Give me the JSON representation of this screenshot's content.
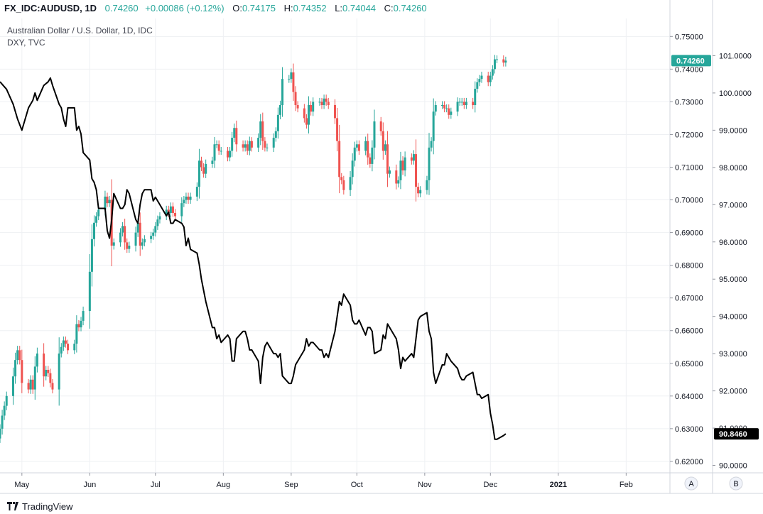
{
  "legend": {
    "symbol": "FX_IDC:AUDUSD, 1D",
    "last": "0.74260",
    "change": "+0.00086 (+0.12%)",
    "o_label": "O:",
    "o": "0.74175",
    "h_label": "H:",
    "h": "0.74352",
    "l_label": "L:",
    "l": "0.74044",
    "c_label": "C:",
    "c": "0.74260"
  },
  "chart_data": {
    "type": "candlestick+line",
    "title": "Australian Dollar / U.S. Dollar, 1D, IDC",
    "subtitle": "DXY, TVC",
    "xlabel": "",
    "x_tick_labels": [
      "May",
      "Jun",
      "Jul",
      "Aug",
      "Sep",
      "Oct",
      "Nov",
      "Dec",
      "2021",
      "Feb"
    ],
    "x_tick_dates": [
      "2020-05-01",
      "2020-06-01",
      "2020-07-01",
      "2020-08-01",
      "2020-09-01",
      "2020-10-01",
      "2020-11-01",
      "2020-12-01",
      "2021-01-01",
      "2021-02-01"
    ],
    "x_range": [
      "2020-04-21",
      "2021-02-21"
    ],
    "left_axis": {
      "label": "",
      "series": "FX_IDC:AUDUSD",
      "ylim": [
        0.6165,
        0.7555
      ],
      "ticks": [
        "0.62000",
        "0.63000",
        "0.64000",
        "0.65000",
        "0.66000",
        "0.67000",
        "0.68000",
        "0.69000",
        "0.70000",
        "0.71000",
        "0.72000",
        "0.73000",
        "0.74000",
        "0.75000"
      ],
      "last_value_label": "0.74260",
      "last_value": 0.7426
    },
    "right_axis": {
      "label": "",
      "series": "DXY, TVC",
      "ylim": [
        89.8,
        102.0
      ],
      "ticks": [
        "90.0000",
        "91.0000",
        "92.0000",
        "93.0000",
        "94.0000",
        "95.0000",
        "96.0000",
        "97.0000",
        "98.0000",
        "99.0000",
        "100.0000",
        "101.0000"
      ],
      "last_value_label": "90.8460",
      "last_value": 90.846
    },
    "axis_buttons": [
      "A",
      "B"
    ],
    "audusd_daily_close": [
      [
        "2020-04-21",
        0.63
      ],
      [
        "2020-04-22",
        0.634
      ],
      [
        "2020-04-23",
        0.637
      ],
      [
        "2020-04-24",
        0.64
      ],
      [
        "2020-04-27",
        0.646
      ],
      [
        "2020-04-28",
        0.651
      ],
      [
        "2020-04-29",
        0.654
      ],
      [
        "2020-04-30",
        0.651
      ],
      [
        "2020-05-01",
        0.644
      ],
      [
        "2020-05-04",
        0.642
      ],
      [
        "2020-05-05",
        0.645
      ],
      [
        "2020-05-06",
        0.642
      ],
      [
        "2020-05-07",
        0.649
      ],
      [
        "2020-05-08",
        0.653
      ],
      [
        "2020-05-11",
        0.646
      ],
      [
        "2020-05-12",
        0.648
      ],
      [
        "2020-05-13",
        0.647
      ],
      [
        "2020-05-14",
        0.644
      ],
      [
        "2020-05-15",
        0.642
      ],
      [
        "2020-05-18",
        0.653
      ],
      [
        "2020-05-19",
        0.655
      ],
      [
        "2020-05-20",
        0.657
      ],
      [
        "2020-05-21",
        0.656
      ],
      [
        "2020-05-22",
        0.654
      ],
      [
        "2020-05-25",
        0.656
      ],
      [
        "2020-05-26",
        0.662
      ],
      [
        "2020-05-27",
        0.661
      ],
      [
        "2020-05-28",
        0.663
      ],
      [
        "2020-05-29",
        0.666
      ],
      [
        "2020-06-01",
        0.678
      ],
      [
        "2020-06-02",
        0.688
      ],
      [
        "2020-06-03",
        0.693
      ],
      [
        "2020-06-04",
        0.695
      ],
      [
        "2020-06-05",
        0.697
      ],
      [
        "2020-06-08",
        0.701
      ],
      [
        "2020-06-09",
        0.699
      ],
      [
        "2020-06-10",
        0.7
      ],
      [
        "2020-06-11",
        0.686
      ],
      [
        "2020-06-12",
        0.687
      ],
      [
        "2020-06-15",
        0.69
      ],
      [
        "2020-06-16",
        0.692
      ],
      [
        "2020-06-17",
        0.687
      ],
      [
        "2020-06-18",
        0.685
      ],
      [
        "2020-06-19",
        0.686
      ],
      [
        "2020-06-22",
        0.69
      ],
      [
        "2020-06-23",
        0.693
      ],
      [
        "2020-06-24",
        0.686
      ],
      [
        "2020-06-25",
        0.687
      ],
      [
        "2020-06-26",
        0.688
      ],
      [
        "2020-06-29",
        0.689
      ],
      [
        "2020-06-30",
        0.69
      ],
      [
        "2020-07-01",
        0.692
      ],
      [
        "2020-07-02",
        0.694
      ],
      [
        "2020-07-03",
        0.695
      ],
      [
        "2020-07-06",
        0.697
      ],
      [
        "2020-07-07",
        0.696
      ],
      [
        "2020-07-08",
        0.698
      ],
      [
        "2020-07-09",
        0.696
      ],
      [
        "2020-07-10",
        0.695
      ],
      [
        "2020-07-13",
        0.699
      ],
      [
        "2020-07-14",
        0.7
      ],
      [
        "2020-07-15",
        0.701
      ],
      [
        "2020-07-16",
        0.7
      ],
      [
        "2020-07-17",
        0.701
      ],
      [
        "2020-07-20",
        0.704
      ],
      [
        "2020-07-21",
        0.712
      ],
      [
        "2020-07-22",
        0.71
      ],
      [
        "2020-07-23",
        0.708
      ],
      [
        "2020-07-24",
        0.711
      ],
      [
        "2020-07-27",
        0.712
      ],
      [
        "2020-07-28",
        0.717
      ],
      [
        "2020-07-29",
        0.717
      ],
      [
        "2020-07-30",
        0.715
      ],
      [
        "2020-07-31",
        0.715
      ],
      [
        "2020-08-03",
        0.713
      ],
      [
        "2020-08-04",
        0.715
      ],
      [
        "2020-08-05",
        0.719
      ],
      [
        "2020-08-06",
        0.722
      ],
      [
        "2020-08-07",
        0.717
      ],
      [
        "2020-08-10",
        0.716
      ],
      [
        "2020-08-11",
        0.717
      ],
      [
        "2020-08-12",
        0.715
      ],
      [
        "2020-08-13",
        0.718
      ],
      [
        "2020-08-14",
        0.716
      ],
      [
        "2020-08-17",
        0.719
      ],
      [
        "2020-08-18",
        0.724
      ],
      [
        "2020-08-19",
        0.718
      ],
      [
        "2020-08-20",
        0.716
      ],
      [
        "2020-08-21",
        0.716
      ],
      [
        "2020-08-24",
        0.719
      ],
      [
        "2020-08-25",
        0.721
      ],
      [
        "2020-08-26",
        0.726
      ],
      [
        "2020-08-27",
        0.729
      ],
      [
        "2020-08-28",
        0.737
      ],
      [
        "2020-08-31",
        0.737
      ],
      [
        "2020-09-01",
        0.739
      ],
      [
        "2020-09-02",
        0.733
      ],
      [
        "2020-09-03",
        0.729
      ],
      [
        "2020-09-04",
        0.728
      ],
      [
        "2020-09-07",
        0.725
      ],
      [
        "2020-09-08",
        0.723
      ],
      [
        "2020-09-09",
        0.729
      ],
      [
        "2020-09-10",
        0.727
      ],
      [
        "2020-09-11",
        0.73
      ],
      [
        "2020-09-14",
        0.73
      ],
      [
        "2020-09-15",
        0.729
      ],
      [
        "2020-09-16",
        0.731
      ],
      [
        "2020-09-17",
        0.73
      ],
      [
        "2020-09-18",
        0.729
      ],
      [
        "2020-09-21",
        0.725
      ],
      [
        "2020-09-22",
        0.718
      ],
      [
        "2020-09-23",
        0.707
      ],
      [
        "2020-09-24",
        0.706
      ],
      [
        "2020-09-25",
        0.703
      ],
      [
        "2020-09-28",
        0.707
      ],
      [
        "2020-09-29",
        0.712
      ],
      [
        "2020-09-30",
        0.716
      ],
      [
        "2020-10-01",
        0.717
      ],
      [
        "2020-10-02",
        0.715
      ],
      [
        "2020-10-05",
        0.718
      ],
      [
        "2020-10-06",
        0.713
      ],
      [
        "2020-10-07",
        0.711
      ],
      [
        "2020-10-08",
        0.716
      ],
      [
        "2020-10-09",
        0.724
      ],
      [
        "2020-10-12",
        0.721
      ],
      [
        "2020-10-13",
        0.715
      ],
      [
        "2020-10-14",
        0.717
      ],
      [
        "2020-10-15",
        0.708
      ],
      [
        "2020-10-16",
        0.709
      ],
      [
        "2020-10-19",
        0.705
      ],
      [
        "2020-10-20",
        0.706
      ],
      [
        "2020-10-21",
        0.712
      ],
      [
        "2020-10-22",
        0.709
      ],
      [
        "2020-10-23",
        0.713
      ],
      [
        "2020-10-26",
        0.712
      ],
      [
        "2020-10-27",
        0.714
      ],
      [
        "2020-10-28",
        0.704
      ],
      [
        "2020-10-29",
        0.702
      ],
      [
        "2020-10-30",
        0.703
      ],
      [
        "2020-11-02",
        0.706
      ],
      [
        "2020-11-03",
        0.716
      ],
      [
        "2020-11-04",
        0.718
      ],
      [
        "2020-11-05",
        0.727
      ],
      [
        "2020-11-06",
        0.729
      ],
      [
        "2020-11-09",
        0.729
      ],
      [
        "2020-11-10",
        0.728
      ],
      [
        "2020-11-11",
        0.728
      ],
      [
        "2020-11-12",
        0.726
      ],
      [
        "2020-11-13",
        0.727
      ],
      [
        "2020-11-16",
        0.73
      ],
      [
        "2020-11-17",
        0.73
      ],
      [
        "2020-11-18",
        0.73
      ],
      [
        "2020-11-19",
        0.729
      ],
      [
        "2020-11-20",
        0.73
      ],
      [
        "2020-11-23",
        0.729
      ],
      [
        "2020-11-24",
        0.734
      ],
      [
        "2020-11-25",
        0.736
      ],
      [
        "2020-11-26",
        0.737
      ],
      [
        "2020-11-27",
        0.738
      ],
      [
        "2020-11-30",
        0.736
      ],
      [
        "2020-12-01",
        0.738
      ],
      [
        "2020-12-02",
        0.74
      ],
      [
        "2020-12-03",
        0.743
      ],
      [
        "2020-12-04",
        0.743
      ],
      [
        "2020-12-07",
        0.742
      ],
      [
        "2020-12-08",
        0.7426
      ]
    ],
    "dxy_daily_close": [
      [
        "2020-04-21",
        100.3
      ],
      [
        "2020-04-24",
        100.1
      ],
      [
        "2020-04-27",
        99.7
      ],
      [
        "2020-04-29",
        99.3
      ],
      [
        "2020-05-01",
        99.0
      ],
      [
        "2020-05-04",
        99.6
      ],
      [
        "2020-05-06",
        99.8
      ],
      [
        "2020-05-07",
        100.0
      ],
      [
        "2020-05-08",
        99.8
      ],
      [
        "2020-05-11",
        100.2
      ],
      [
        "2020-05-13",
        100.3
      ],
      [
        "2020-05-14",
        100.4
      ],
      [
        "2020-05-15",
        100.2
      ],
      [
        "2020-05-18",
        99.7
      ],
      [
        "2020-05-19",
        99.6
      ],
      [
        "2020-05-20",
        99.3
      ],
      [
        "2020-05-21",
        99.1
      ],
      [
        "2020-05-22",
        99.6
      ],
      [
        "2020-05-25",
        99.6
      ],
      [
        "2020-05-26",
        99.0
      ],
      [
        "2020-05-27",
        99.1
      ],
      [
        "2020-05-28",
        98.9
      ],
      [
        "2020-05-29",
        98.4
      ],
      [
        "2020-06-01",
        98.2
      ],
      [
        "2020-06-02",
        97.7
      ],
      [
        "2020-06-03",
        97.6
      ],
      [
        "2020-06-04",
        97.4
      ],
      [
        "2020-06-05",
        96.9
      ],
      [
        "2020-06-08",
        96.9
      ],
      [
        "2020-06-09",
        96.3
      ],
      [
        "2020-06-10",
        96.1
      ],
      [
        "2020-06-11",
        96.6
      ],
      [
        "2020-06-12",
        97.3
      ],
      [
        "2020-06-15",
        96.9
      ],
      [
        "2020-06-16",
        96.9
      ],
      [
        "2020-06-17",
        97.0
      ],
      [
        "2020-06-18",
        97.4
      ],
      [
        "2020-06-19",
        97.3
      ],
      [
        "2020-06-22",
        96.6
      ],
      [
        "2020-06-23",
        96.5
      ],
      [
        "2020-06-24",
        97.0
      ],
      [
        "2020-06-25",
        97.3
      ],
      [
        "2020-06-26",
        97.4
      ],
      [
        "2020-06-29",
        97.4
      ],
      [
        "2020-06-30",
        97.1
      ],
      [
        "2020-07-01",
        97.2
      ],
      [
        "2020-07-02",
        97.1
      ],
      [
        "2020-07-03",
        97.0
      ],
      [
        "2020-07-06",
        96.7
      ],
      [
        "2020-07-07",
        96.8
      ],
      [
        "2020-07-08",
        96.5
      ],
      [
        "2020-07-09",
        96.5
      ],
      [
        "2020-07-10",
        96.6
      ],
      [
        "2020-07-13",
        96.5
      ],
      [
        "2020-07-14",
        96.4
      ],
      [
        "2020-07-15",
        95.9
      ],
      [
        "2020-07-16",
        96.1
      ],
      [
        "2020-07-17",
        95.8
      ],
      [
        "2020-07-20",
        95.7
      ],
      [
        "2020-07-21",
        95.4
      ],
      [
        "2020-07-22",
        95.0
      ],
      [
        "2020-07-23",
        94.7
      ],
      [
        "2020-07-24",
        94.4
      ],
      [
        "2020-07-27",
        93.7
      ],
      [
        "2020-07-28",
        93.7
      ],
      [
        "2020-07-29",
        93.4
      ],
      [
        "2020-07-30",
        93.5
      ],
      [
        "2020-07-31",
        93.3
      ],
      [
        "2020-08-03",
        93.5
      ],
      [
        "2020-08-04",
        93.4
      ],
      [
        "2020-08-05",
        92.8
      ],
      [
        "2020-08-06",
        92.8
      ],
      [
        "2020-08-07",
        93.4
      ],
      [
        "2020-08-10",
        93.6
      ],
      [
        "2020-08-11",
        93.6
      ],
      [
        "2020-08-12",
        93.4
      ],
      [
        "2020-08-13",
        93.1
      ],
      [
        "2020-08-14",
        93.1
      ],
      [
        "2020-08-17",
        92.8
      ],
      [
        "2020-08-18",
        92.2
      ],
      [
        "2020-08-19",
        92.9
      ],
      [
        "2020-08-20",
        93.2
      ],
      [
        "2020-08-21",
        93.3
      ],
      [
        "2020-08-24",
        93.0
      ],
      [
        "2020-08-25",
        93.0
      ],
      [
        "2020-08-26",
        92.9
      ],
      [
        "2020-08-27",
        93.0
      ],
      [
        "2020-08-28",
        92.4
      ],
      [
        "2020-08-31",
        92.2
      ],
      [
        "2020-09-01",
        92.2
      ],
      [
        "2020-09-02",
        92.4
      ],
      [
        "2020-09-03",
        92.7
      ],
      [
        "2020-09-04",
        92.8
      ],
      [
        "2020-09-07",
        93.1
      ],
      [
        "2020-09-08",
        93.4
      ],
      [
        "2020-09-09",
        93.2
      ],
      [
        "2020-09-10",
        93.3
      ],
      [
        "2020-09-11",
        93.3
      ],
      [
        "2020-09-14",
        93.1
      ],
      [
        "2020-09-15",
        93.1
      ],
      [
        "2020-09-16",
        92.9
      ],
      [
        "2020-09-17",
        93.0
      ],
      [
        "2020-09-18",
        92.9
      ],
      [
        "2020-09-21",
        93.6
      ],
      [
        "2020-09-22",
        94.0
      ],
      [
        "2020-09-23",
        94.4
      ],
      [
        "2020-09-24",
        94.3
      ],
      [
        "2020-09-25",
        94.6
      ],
      [
        "2020-09-28",
        94.3
      ],
      [
        "2020-09-29",
        93.9
      ],
      [
        "2020-09-30",
        93.8
      ],
      [
        "2020-10-01",
        93.8
      ],
      [
        "2020-10-02",
        93.9
      ],
      [
        "2020-10-05",
        93.5
      ],
      [
        "2020-10-06",
        93.7
      ],
      [
        "2020-10-07",
        93.7
      ],
      [
        "2020-10-08",
        93.6
      ],
      [
        "2020-10-09",
        93.0
      ],
      [
        "2020-10-12",
        93.1
      ],
      [
        "2020-10-13",
        93.5
      ],
      [
        "2020-10-14",
        93.4
      ],
      [
        "2020-10-15",
        93.8
      ],
      [
        "2020-10-16",
        93.7
      ],
      [
        "2020-10-19",
        93.4
      ],
      [
        "2020-10-20",
        93.1
      ],
      [
        "2020-10-21",
        92.6
      ],
      [
        "2020-10-22",
        92.9
      ],
      [
        "2020-10-23",
        92.8
      ],
      [
        "2020-10-26",
        93.0
      ],
      [
        "2020-10-27",
        92.9
      ],
      [
        "2020-10-28",
        93.4
      ],
      [
        "2020-10-29",
        93.9
      ],
      [
        "2020-10-30",
        94.0
      ],
      [
        "2020-11-02",
        94.1
      ],
      [
        "2020-11-03",
        93.6
      ],
      [
        "2020-11-04",
        93.4
      ],
      [
        "2020-11-05",
        92.5
      ],
      [
        "2020-11-06",
        92.2
      ],
      [
        "2020-11-09",
        92.7
      ],
      [
        "2020-11-10",
        92.7
      ],
      [
        "2020-11-11",
        93.0
      ],
      [
        "2020-11-12",
        92.9
      ],
      [
        "2020-11-13",
        92.8
      ],
      [
        "2020-11-16",
        92.6
      ],
      [
        "2020-11-17",
        92.4
      ],
      [
        "2020-11-18",
        92.3
      ],
      [
        "2020-11-19",
        92.3
      ],
      [
        "2020-11-20",
        92.4
      ],
      [
        "2020-11-23",
        92.5
      ],
      [
        "2020-11-24",
        92.2
      ],
      [
        "2020-11-25",
        91.9
      ],
      [
        "2020-11-26",
        91.9
      ],
      [
        "2020-11-27",
        91.8
      ],
      [
        "2020-11-30",
        91.9
      ],
      [
        "2020-12-01",
        91.4
      ],
      [
        "2020-12-02",
        91.1
      ],
      [
        "2020-12-03",
        90.7
      ],
      [
        "2020-12-04",
        90.7
      ],
      [
        "2020-12-07",
        90.8
      ],
      [
        "2020-12-08",
        90.846
      ]
    ],
    "candle_colors": {
      "up": "#26a69a",
      "down": "#ef5350"
    },
    "line_color": "#000000",
    "grid": true,
    "legend_position": "top-left"
  },
  "footer": {
    "brand": "TradingView"
  }
}
